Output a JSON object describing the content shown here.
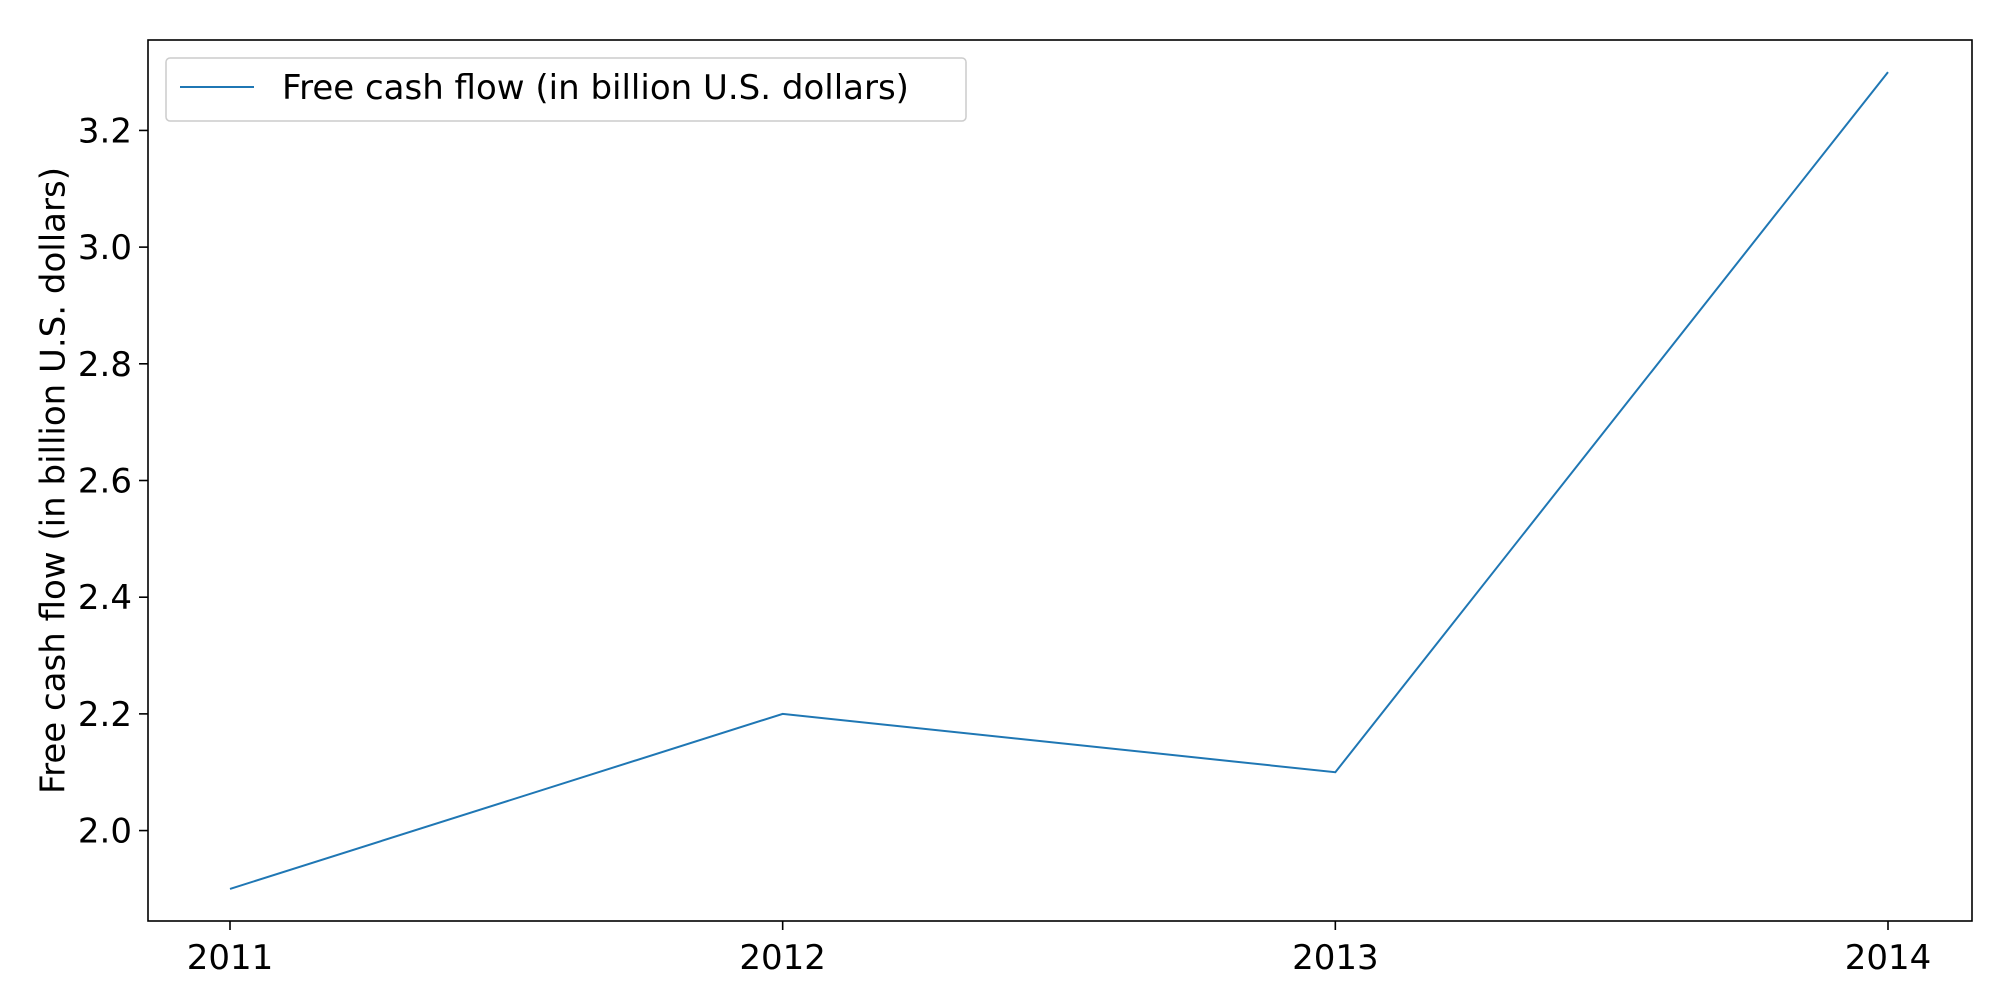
{
  "chart_data": {
    "type": "line",
    "title": "",
    "xlabel": "",
    "ylabel": "Free cash flow (in billion U.S. dollars)",
    "categories": [
      "2011",
      "2012",
      "2013",
      "2014"
    ],
    "series": [
      {
        "name": "Free cash flow (in billion U.S. dollars)",
        "values": [
          1.9,
          2.2,
          2.1,
          3.3
        ],
        "color": "#1f77b4"
      }
    ],
    "yticks": [
      "2.0",
      "2.2",
      "2.4",
      "2.6",
      "2.8",
      "3.0",
      "3.2"
    ],
    "ylim": [
      1.845,
      3.355
    ],
    "grid": false,
    "legend_position": "top-left"
  }
}
